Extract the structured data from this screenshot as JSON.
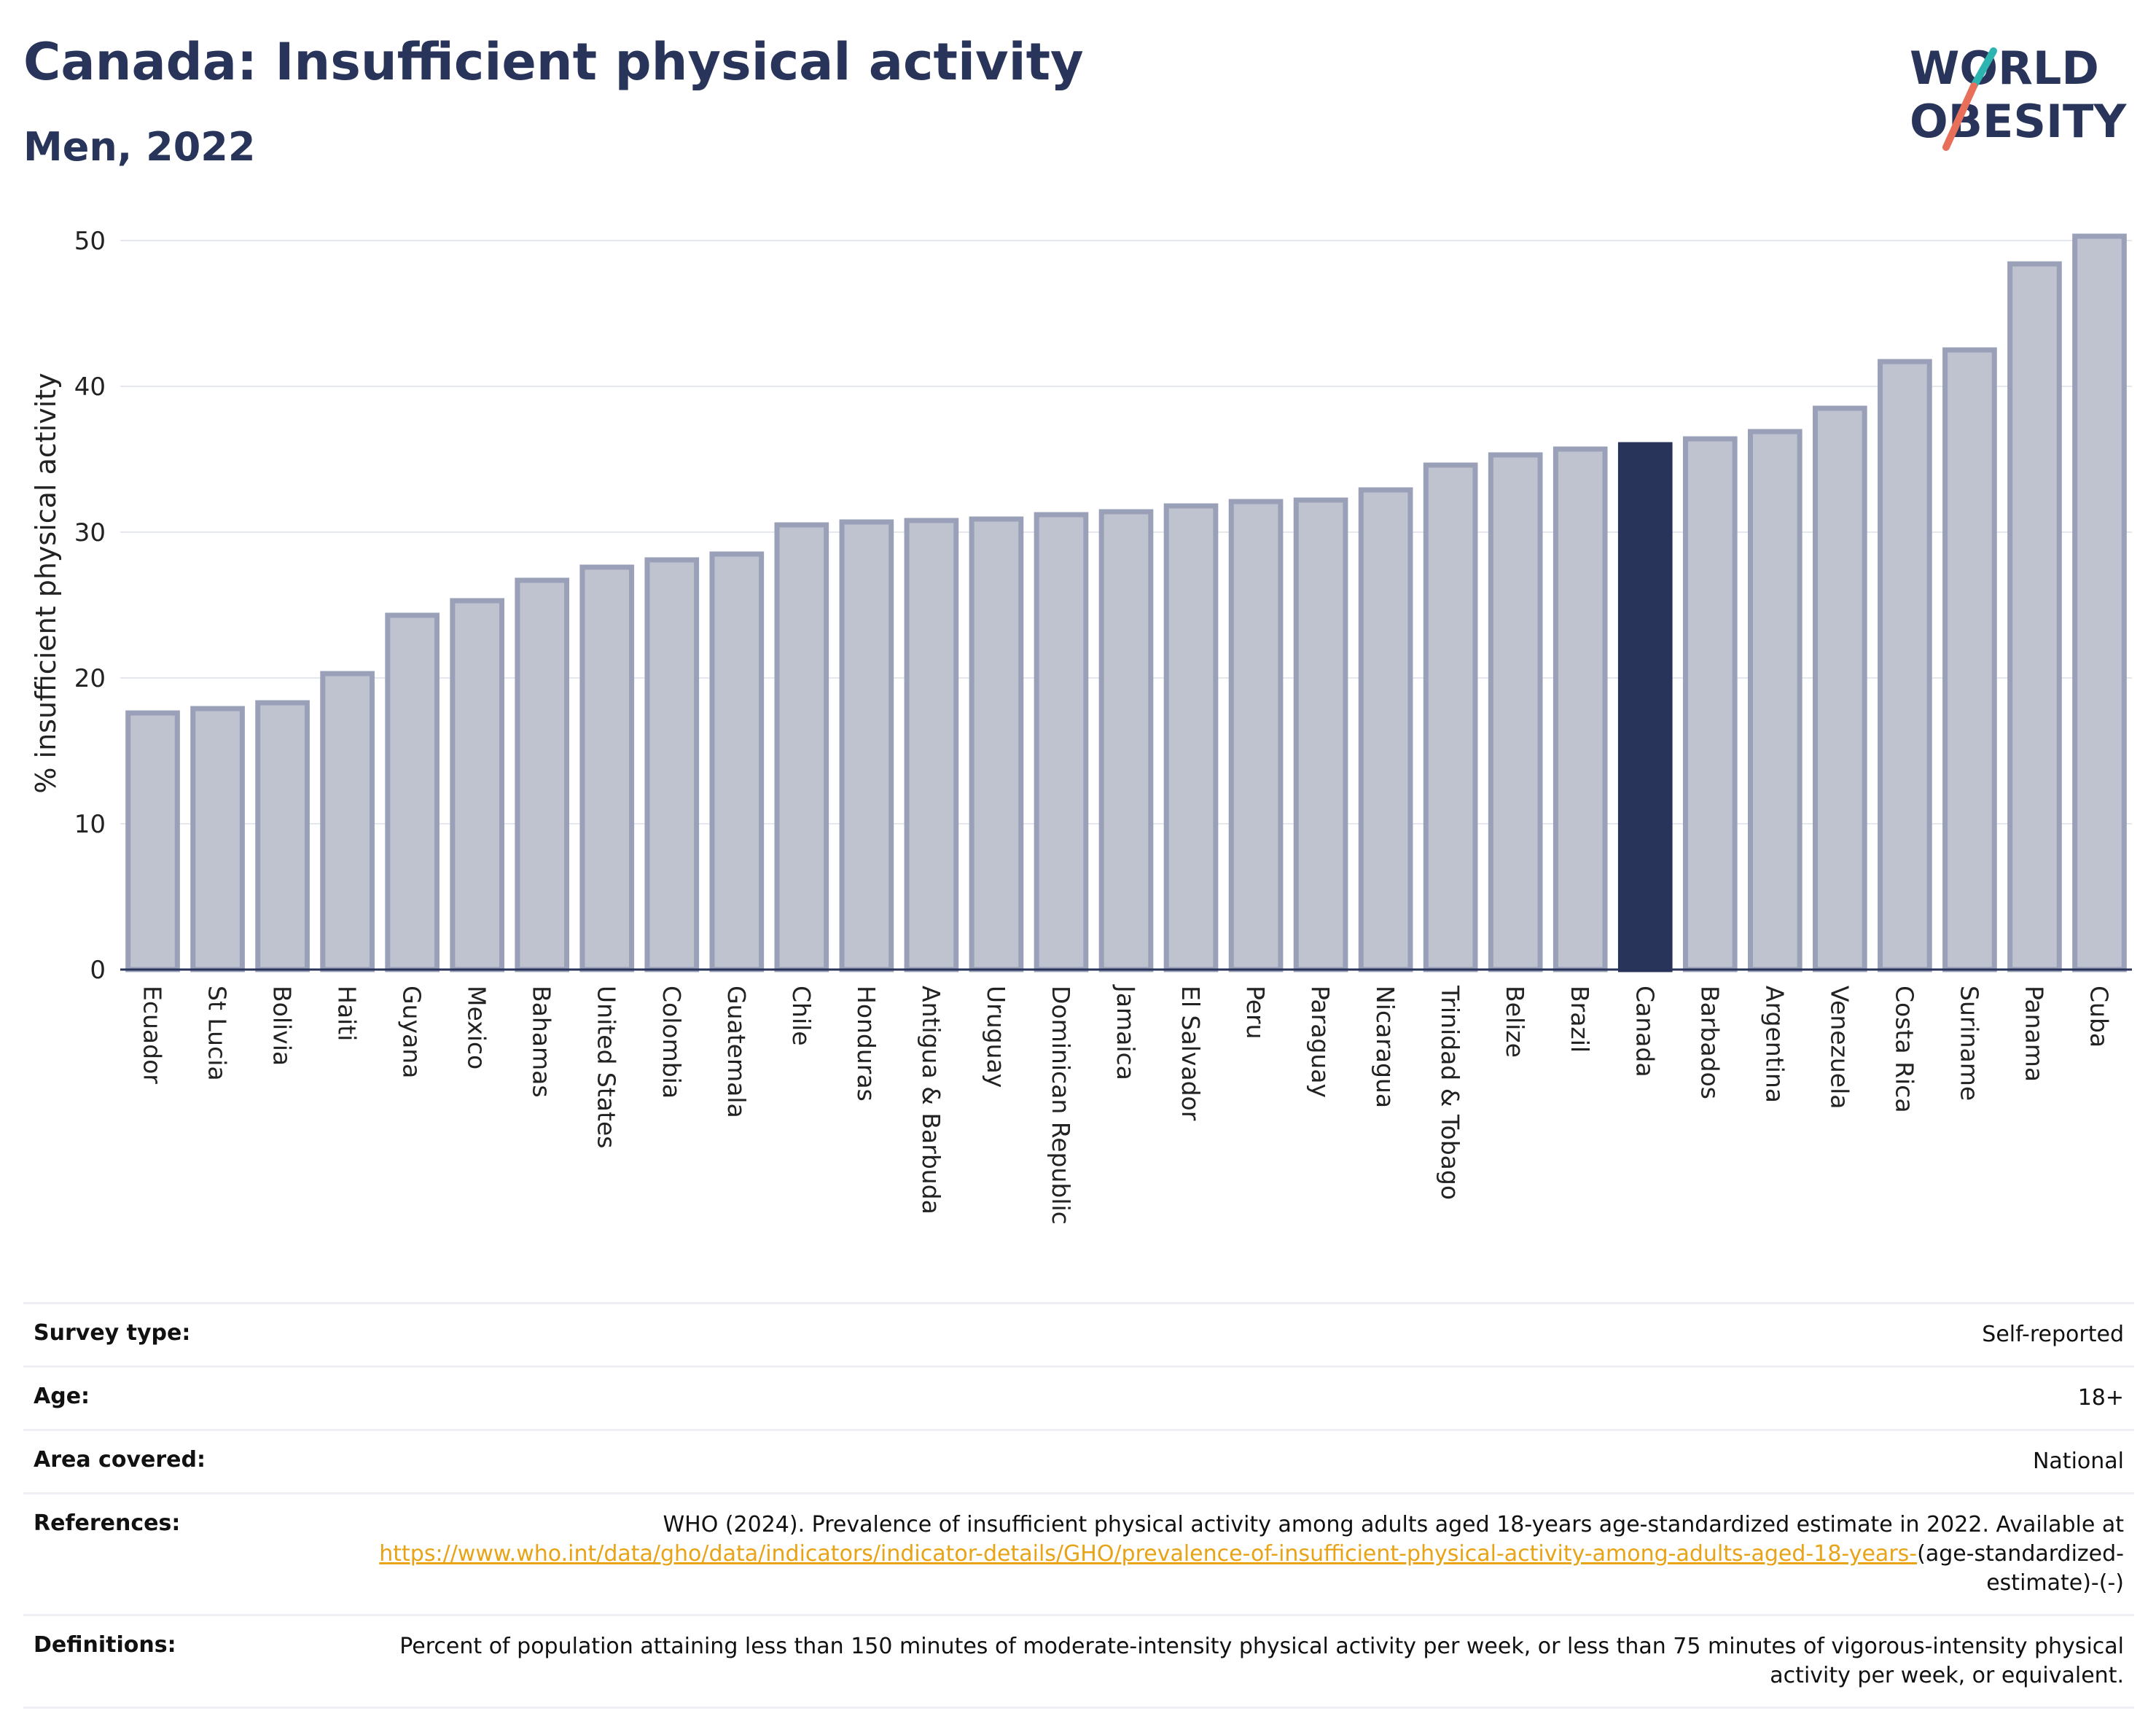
{
  "title": "Canada: Insufficient physical activity",
  "subtitle": "Men, 2022",
  "logo": {
    "line1": "WORLD",
    "line2": "OBESITY",
    "accent_teal": "#2cb5b0",
    "accent_coral": "#e8705a"
  },
  "colors": {
    "bar": "#bfc2cf",
    "bar_border": "#9aa0b7",
    "highlight": "#283459",
    "grid": "#e6e8ef",
    "axis": "#283459"
  },
  "chart_data": {
    "type": "bar",
    "ylabel": "% insufficient physical activity",
    "ylim": [
      0,
      50
    ],
    "yticks": [
      0,
      10,
      20,
      30,
      40,
      50
    ],
    "highlight": "Canada",
    "grid": true,
    "categories": [
      "Ecuador",
      "St Lucia",
      "Bolivia",
      "Haiti",
      "Guyana",
      "Mexico",
      "Bahamas",
      "United States",
      "Colombia",
      "Guatemala",
      "Chile",
      "Honduras",
      "Antigua & Barbuda",
      "Uruguay",
      "Dominican Republic",
      "Jamaica",
      "El Salvador",
      "Peru",
      "Paraguay",
      "Nicaragua",
      "Trinidad & Tobago",
      "Belize",
      "Brazil",
      "Canada",
      "Barbados",
      "Argentina",
      "Venezuela",
      "Costa Rica",
      "Suriname",
      "Panama",
      "Cuba"
    ],
    "values": [
      17.6,
      17.9,
      18.3,
      20.3,
      24.3,
      25.3,
      26.7,
      27.6,
      28.1,
      28.5,
      30.5,
      30.7,
      30.8,
      30.9,
      31.2,
      31.4,
      31.8,
      32.1,
      32.2,
      32.9,
      34.6,
      35.3,
      35.7,
      36.0,
      36.4,
      36.9,
      38.5,
      41.7,
      42.5,
      48.4,
      50.3
    ]
  },
  "info": {
    "survey_type_label": "Survey type:",
    "survey_type_value": "Self-reported",
    "age_label": "Age:",
    "age_value": "18+",
    "area_label": "Area covered:",
    "area_value": "National",
    "references_label": "References:",
    "references_text": "WHO (2024). Prevalence of insufficient physical activity among adults aged 18-years age-standardized estimate in 2022. Available at",
    "references_link": "https://www.who.int/data/gho/data/indicators/indicator-details/GHO/prevalence-of-insufficient-physical-activity-among-adults-aged-18-years-",
    "references_suffix": "(age-standardized-estimate)-(-)",
    "definitions_label": "Definitions:",
    "definitions_text": "Percent of population attaining less than 150 minutes of moderate-intensity physical activity per week, or less than 75 minutes of vigorous-intensity physical activity per week, or equivalent."
  }
}
